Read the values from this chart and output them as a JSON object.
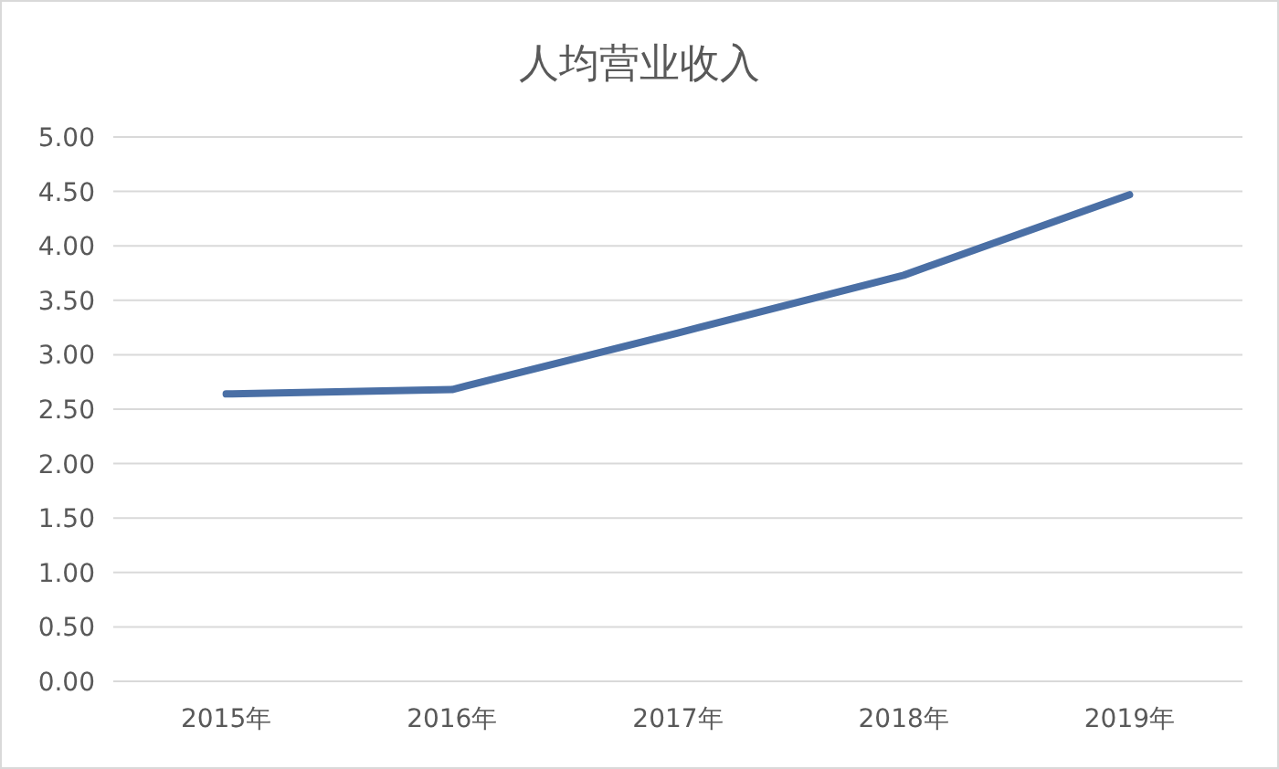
{
  "chart_data": {
    "type": "line",
    "title": "人均营业收入",
    "categories": [
      "2015年",
      "2016年",
      "2017年",
      "2018年",
      "2019年"
    ],
    "series": [
      {
        "color": "#4a6fa5",
        "values": [
          2.64,
          2.68,
          3.2,
          3.73,
          4.47
        ]
      }
    ],
    "ylim": [
      0,
      5
    ],
    "yticks": [
      {
        "value": 0,
        "label": "0.00"
      },
      {
        "value": 0.5,
        "label": "0.50"
      },
      {
        "value": 1,
        "label": "1.00"
      },
      {
        "value": 1.5,
        "label": "1.50"
      },
      {
        "value": 2,
        "label": "2.00"
      },
      {
        "value": 2.5,
        "label": "2.50"
      },
      {
        "value": 3,
        "label": "3.00"
      },
      {
        "value": 3.5,
        "label": "3.50"
      },
      {
        "value": 4,
        "label": "4.00"
      },
      {
        "value": 4.5,
        "label": "4.50"
      },
      {
        "value": 5,
        "label": "5.00"
      }
    ],
    "grid": "y",
    "marker": "none",
    "line_style": "solid"
  }
}
